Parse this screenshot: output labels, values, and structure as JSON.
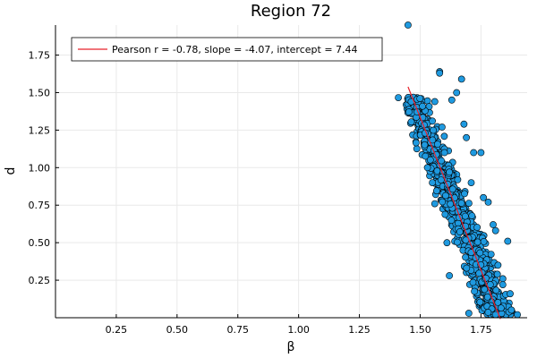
{
  "chart_data": {
    "type": "scatter",
    "title": "Region 72",
    "xlabel": "β",
    "ylabel": "d",
    "xlim": [
      0.0,
      1.94
    ],
    "ylim": [
      0.0,
      1.95
    ],
    "x_ticks": [
      0.25,
      0.5,
      0.75,
      1.0,
      1.25,
      1.5,
      1.75
    ],
    "x_tick_labels": [
      "0.25",
      "0.50",
      "0.75",
      "1.00",
      "1.25",
      "1.50",
      "1.75"
    ],
    "y_ticks": [
      0.25,
      0.5,
      0.75,
      1.0,
      1.25,
      1.5,
      1.75
    ],
    "y_tick_labels": [
      "0.25",
      "0.50",
      "0.75",
      "1.00",
      "1.25",
      "1.50",
      "1.75"
    ],
    "grid": true,
    "legend": {
      "placement": "top-left",
      "entries": [
        {
          "label": "Pearson r = -0.78, slope = -4.07, intercept = 7.44",
          "color": "#e8202a"
        }
      ]
    },
    "scatter_color": "#1f9ae0",
    "scatter_edge_color": "#000000",
    "fit_line": {
      "slope": -4.07,
      "intercept": 7.44,
      "x_range": [
        1.45,
        1.83
      ],
      "color": "#e8202a"
    },
    "cloud": {
      "point_count": 900,
      "outline_points": [
        [
          1.45,
          1.95
        ],
        [
          1.58,
          1.64
        ],
        [
          1.58,
          1.63
        ],
        [
          1.67,
          1.59
        ],
        [
          1.65,
          1.5
        ],
        [
          1.63,
          1.45
        ],
        [
          1.68,
          1.29
        ],
        [
          1.69,
          1.2
        ],
        [
          1.72,
          1.1
        ],
        [
          1.75,
          1.1
        ],
        [
          1.71,
          0.9
        ],
        [
          1.76,
          0.8
        ],
        [
          1.78,
          0.77
        ],
        [
          1.8,
          0.62
        ],
        [
          1.81,
          0.58
        ],
        [
          1.86,
          0.51
        ],
        [
          1.82,
          0.35
        ],
        [
          1.84,
          0.26
        ],
        [
          1.84,
          0.22
        ],
        [
          1.87,
          0.16
        ],
        [
          1.9,
          0.02
        ],
        [
          1.81,
          0.02
        ],
        [
          1.7,
          0.03
        ],
        [
          1.62,
          0.28
        ],
        [
          1.61,
          0.5
        ],
        [
          1.56,
          0.76
        ],
        [
          1.55,
          0.9
        ],
        [
          1.53,
          1.0
        ],
        [
          1.52,
          1.23
        ],
        [
          1.55,
          1.31
        ],
        [
          1.56,
          1.44
        ],
        [
          1.59,
          1.27
        ],
        [
          1.6,
          1.1
        ],
        [
          1.62,
          0.97
        ]
      ]
    }
  }
}
